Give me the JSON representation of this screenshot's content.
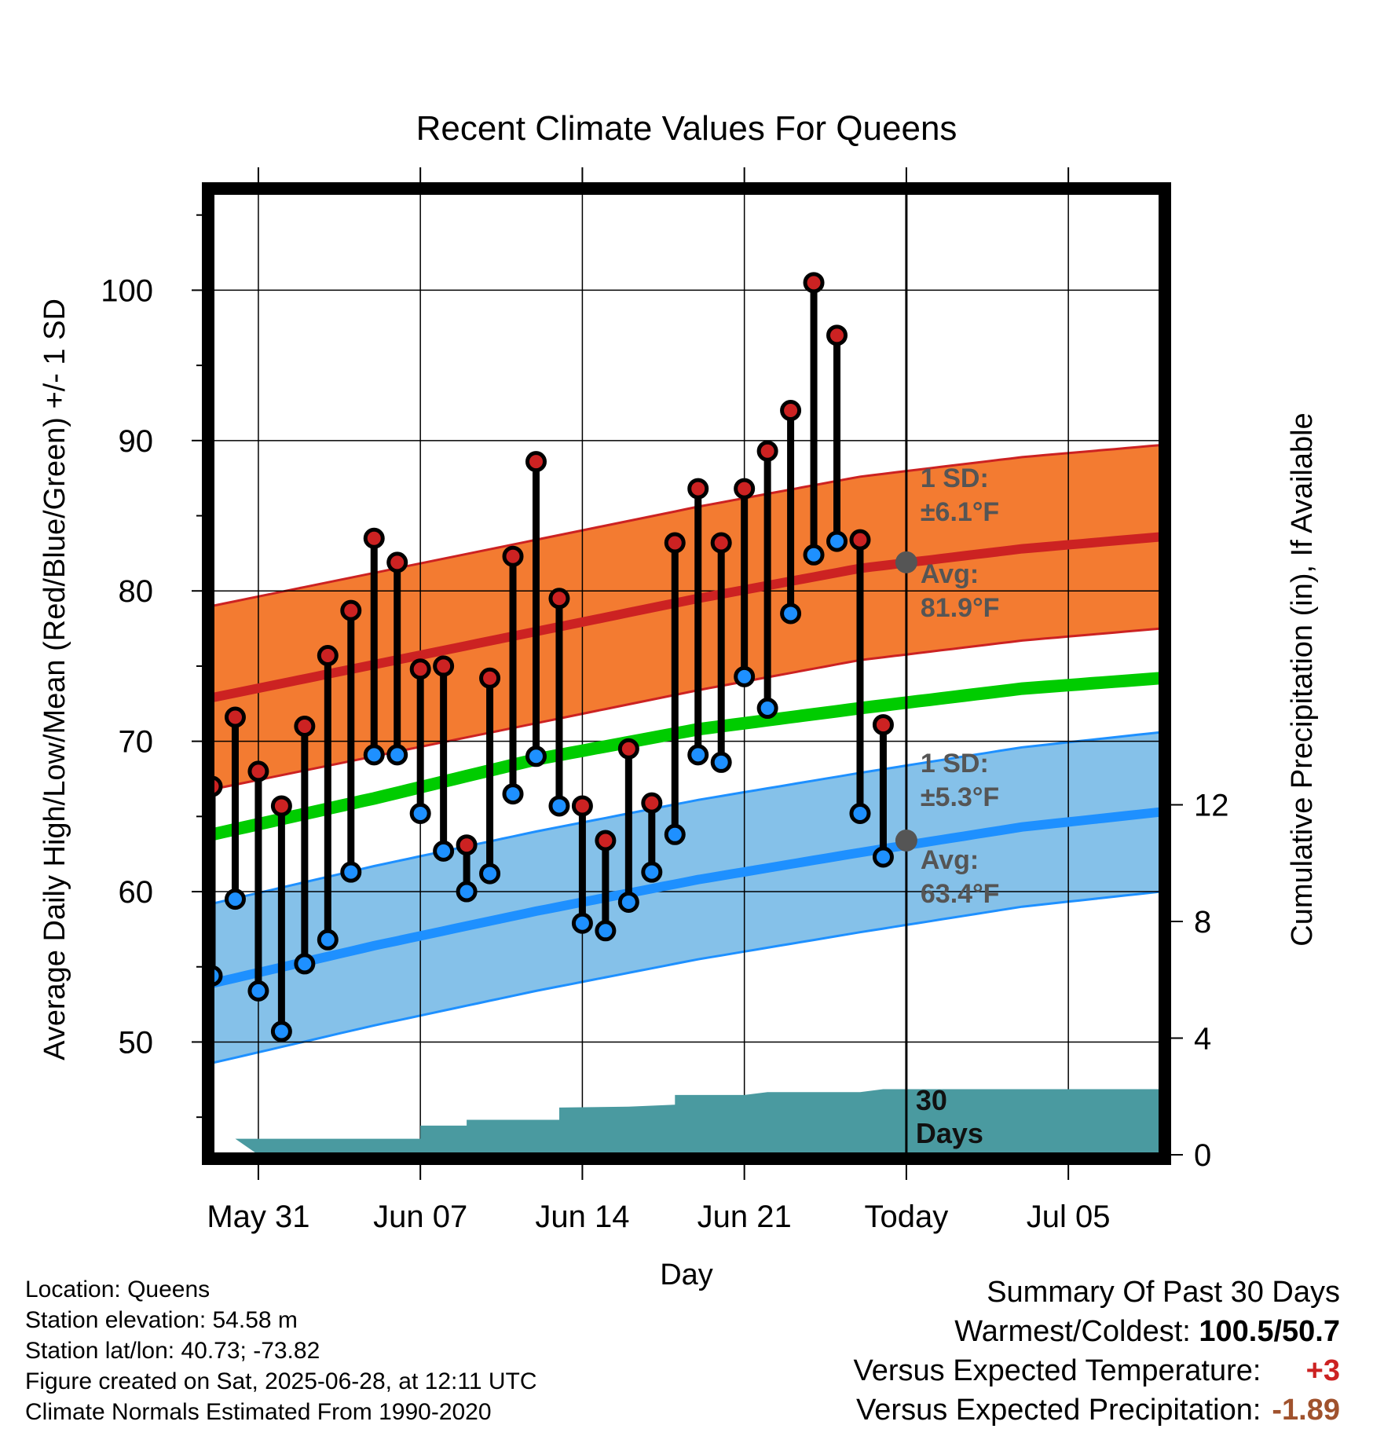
{
  "chart_data": {
    "type": "line",
    "title": "Recent Climate Values For Queens",
    "xlabel": "Day",
    "ylabel": "Average Daily High/Low/Mean (Red/Blue/Green) +/- 1 SD",
    "y2label": "Cumulative Precipitation (in), If Available",
    "x_start_date": "2025-05-29",
    "x_end_date": "2025-07-09",
    "today_date": "2025-06-28",
    "xticks": [
      {
        "date": "2025-05-31",
        "label": "May 31"
      },
      {
        "date": "2025-06-07",
        "label": "Jun 07"
      },
      {
        "date": "2025-06-14",
        "label": "Jun 14"
      },
      {
        "date": "2025-06-21",
        "label": "Jun 21"
      },
      {
        "date": "2025-06-28",
        "label": "Today"
      },
      {
        "date": "2025-07-05",
        "label": "Jul 05"
      }
    ],
    "ylim": [
      42.5,
      106.5
    ],
    "yticks": [
      50,
      60,
      70,
      80,
      90,
      100
    ],
    "y2lim": [
      0,
      33
    ],
    "y2ticks": [
      0,
      4,
      8,
      12
    ],
    "grid": true,
    "observed": [
      {
        "date": "2025-05-29",
        "high": 67.0,
        "low": 54.4
      },
      {
        "date": "2025-05-30",
        "high": 71.6,
        "low": 59.5
      },
      {
        "date": "2025-05-31",
        "high": 68.0,
        "low": 53.4
      },
      {
        "date": "2025-06-01",
        "high": 65.7,
        "low": 50.7
      },
      {
        "date": "2025-06-02",
        "high": 71.0,
        "low": 55.2
      },
      {
        "date": "2025-06-03",
        "high": 75.7,
        "low": 56.8
      },
      {
        "date": "2025-06-04",
        "high": 78.7,
        "low": 61.3
      },
      {
        "date": "2025-06-05",
        "high": 83.5,
        "low": 69.1
      },
      {
        "date": "2025-06-06",
        "high": 81.9,
        "low": 69.1
      },
      {
        "date": "2025-06-07",
        "high": 74.8,
        "low": 65.2
      },
      {
        "date": "2025-06-08",
        "high": 75.0,
        "low": 62.7
      },
      {
        "date": "2025-06-09",
        "high": 63.1,
        "low": 60.0
      },
      {
        "date": "2025-06-10",
        "high": 74.2,
        "low": 61.2
      },
      {
        "date": "2025-06-11",
        "high": 82.3,
        "low": 66.5
      },
      {
        "date": "2025-06-12",
        "high": 88.6,
        "low": 69.0
      },
      {
        "date": "2025-06-13",
        "high": 79.5,
        "low": 65.7
      },
      {
        "date": "2025-06-14",
        "high": 65.7,
        "low": 57.9
      },
      {
        "date": "2025-06-15",
        "high": 63.4,
        "low": 57.4
      },
      {
        "date": "2025-06-16",
        "high": 69.5,
        "low": 59.3
      },
      {
        "date": "2025-06-17",
        "high": 65.9,
        "low": 61.3
      },
      {
        "date": "2025-06-18",
        "high": 83.2,
        "low": 63.8
      },
      {
        "date": "2025-06-19",
        "high": 86.8,
        "low": 69.1
      },
      {
        "date": "2025-06-20",
        "high": 83.2,
        "low": 68.6
      },
      {
        "date": "2025-06-21",
        "high": 86.8,
        "low": 74.3
      },
      {
        "date": "2025-06-22",
        "high": 89.3,
        "low": 72.2
      },
      {
        "date": "2025-06-23",
        "high": 92.0,
        "low": 78.5
      },
      {
        "date": "2025-06-24",
        "high": 100.5,
        "low": 82.4
      },
      {
        "date": "2025-06-25",
        "high": 97.0,
        "low": 83.3
      },
      {
        "date": "2025-06-26",
        "high": 83.4,
        "low": 65.2
      },
      {
        "date": "2025-06-27",
        "high": 71.1,
        "low": 62.3
      }
    ],
    "normals": {
      "dates": [
        "2025-05-29",
        "2025-06-05",
        "2025-06-12",
        "2025-06-19",
        "2025-06-26",
        "2025-07-03",
        "2025-07-09"
      ],
      "high_avg": [
        72.9,
        75.1,
        77.3,
        79.5,
        81.5,
        82.8,
        83.6
      ],
      "low_avg": [
        53.9,
        56.4,
        58.7,
        60.8,
        62.6,
        64.3,
        65.3
      ],
      "mean_avg": [
        63.8,
        66.2,
        68.8,
        70.8,
        72.2,
        73.5,
        74.2
      ]
    },
    "high_sd": 6.1,
    "low_sd": 5.3,
    "annotations": [
      {
        "line1": "1 SD:",
        "line2": "±6.1°F"
      },
      {
        "line1": "Avg:",
        "line2": "81.9°F"
      },
      {
        "line1": "1 SD:",
        "line2": "±5.3°F"
      },
      {
        "line1": "Avg:",
        "line2": "63.4°F"
      }
    ],
    "today_high_avg": 81.9,
    "today_low_avg": 63.4,
    "precip_label_line1": "30",
    "precip_label_line2": "Days",
    "precip_cumulative": [
      {
        "date": "2025-05-31",
        "value": 0.55
      },
      {
        "date": "2025-06-07",
        "value": 0.55
      },
      {
        "date": "2025-06-07",
        "value": 1.0
      },
      {
        "date": "2025-06-09",
        "value": 1.0
      },
      {
        "date": "2025-06-09",
        "value": 1.2
      },
      {
        "date": "2025-06-13",
        "value": 1.2
      },
      {
        "date": "2025-06-13",
        "value": 1.62
      },
      {
        "date": "2025-06-16",
        "value": 1.65
      },
      {
        "date": "2025-06-18",
        "value": 1.72
      },
      {
        "date": "2025-06-18",
        "value": 2.05
      },
      {
        "date": "2025-06-21",
        "value": 2.05
      },
      {
        "date": "2025-06-22",
        "value": 2.15
      },
      {
        "date": "2025-06-26",
        "value": 2.15
      },
      {
        "date": "2025-06-27",
        "value": 2.25
      },
      {
        "date": "2025-07-09",
        "value": 2.25
      }
    ],
    "colors": {
      "high": "#cc2222",
      "low": "#1e90ff",
      "mean": "#00cc00",
      "high_band": "#f37b31",
      "low_band": "#85c1e9",
      "precip": "#4a9aa0",
      "today_marker": "#555555"
    }
  },
  "footer": {
    "location": "Location: Queens",
    "elevation": "Station elevation: 54.58 m",
    "latlon": "Station lat/lon: 40.73; -73.82",
    "created": "Figure created on Sat, 2025-06-28, at 12:11 UTC",
    "normals": "Climate Normals Estimated From 1990-2020"
  },
  "summary": {
    "title": "Summary Of Past 30 Days",
    "warm_cold_label": "Warmest/Coldest:",
    "warm_cold_value": "100.5/50.7",
    "temp_label": "Versus Expected Temperature:",
    "temp_value": "+3",
    "precip_label": "Versus Expected Precipitation:",
    "precip_value": "-1.89"
  }
}
